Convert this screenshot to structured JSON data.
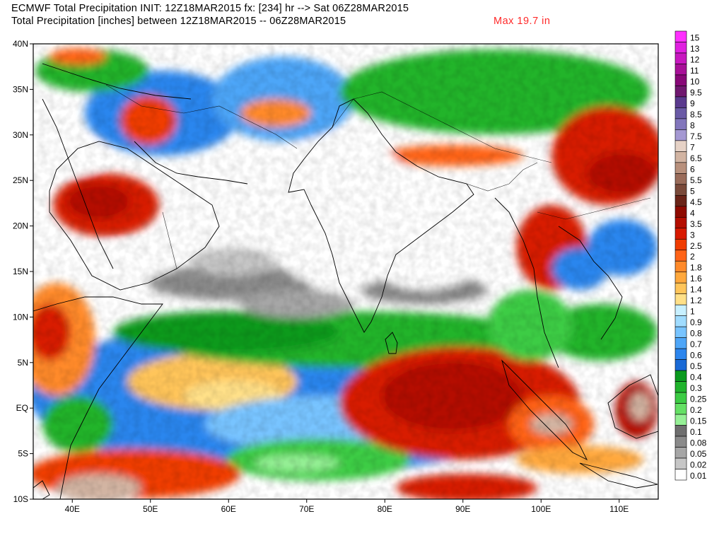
{
  "header": {
    "title_line1": "ECMWF Total Precipitation INIT: 12Z18MAR2015 fx: [234] hr --> Sat 06Z28MAR2015",
    "title_line2": "Total Precipitation [inches] between 12Z18MAR2015 -- 06Z28MAR2015",
    "max_label": "Max  19.7 in"
  },
  "map": {
    "lon_range": [
      35,
      115
    ],
    "lat_range": [
      -10,
      40
    ],
    "x_ticks": [
      "40E",
      "50E",
      "60E",
      "70E",
      "80E",
      "90E",
      "100E",
      "110E"
    ],
    "y_ticks": [
      "40N",
      "35N",
      "30N",
      "25N",
      "20N",
      "15N",
      "10N",
      "5N",
      "EQ",
      "5S",
      "10S"
    ]
  },
  "legend": {
    "levels": [
      {
        "label": "15",
        "color": "#ff30ff"
      },
      {
        "label": "13",
        "color": "#e020e0"
      },
      {
        "label": "12",
        "color": "#c818c0"
      },
      {
        "label": "11",
        "color": "#a81098"
      },
      {
        "label": "10",
        "color": "#880878"
      },
      {
        "label": "9.5",
        "color": "#701870"
      },
      {
        "label": "9",
        "color": "#5a3a8e"
      },
      {
        "label": "8.5",
        "color": "#6a5aa6"
      },
      {
        "label": "8",
        "color": "#8276bc"
      },
      {
        "label": "7.5",
        "color": "#a498d2"
      },
      {
        "label": "7",
        "color": "#e6d2c6"
      },
      {
        "label": "6.5",
        "color": "#d2b4a2"
      },
      {
        "label": "6",
        "color": "#b8907c"
      },
      {
        "label": "5.5",
        "color": "#9a6c5a"
      },
      {
        "label": "5",
        "color": "#7a4a3a"
      },
      {
        "label": "4.5",
        "color": "#6a2418"
      },
      {
        "label": "4",
        "color": "#8e0a00"
      },
      {
        "label": "3.5",
        "color": "#b40e00"
      },
      {
        "label": "3",
        "color": "#d81a00"
      },
      {
        "label": "2.5",
        "color": "#f03c00"
      },
      {
        "label": "2",
        "color": "#ff6418"
      },
      {
        "label": "1.8",
        "color": "#ff8a2a"
      },
      {
        "label": "1.6",
        "color": "#ffa83c"
      },
      {
        "label": "1.4",
        "color": "#ffc55a"
      },
      {
        "label": "1.2",
        "color": "#ffe088"
      },
      {
        "label": "1",
        "color": "#c8f0ff"
      },
      {
        "label": "0.9",
        "color": "#a0dcff"
      },
      {
        "label": "0.8",
        "color": "#78c4ff"
      },
      {
        "label": "0.7",
        "color": "#4ea6f8"
      },
      {
        "label": "0.6",
        "color": "#2c86ee"
      },
      {
        "label": "0.5",
        "color": "#1a6ad6"
      },
      {
        "label": "0.4",
        "color": "#0a9a1e"
      },
      {
        "label": "0.3",
        "color": "#20b42c"
      },
      {
        "label": "0.25",
        "color": "#3ccc44"
      },
      {
        "label": "0.2",
        "color": "#64e064"
      },
      {
        "label": "0.15",
        "color": "#96f096"
      },
      {
        "label": "0.1",
        "color": "#6e6e6e"
      },
      {
        "label": "0.08",
        "color": "#8a8a8a"
      },
      {
        "label": "0.05",
        "color": "#a6a6a6"
      },
      {
        "label": "0.02",
        "color": "#c6c6c6"
      },
      {
        "label": "0.01",
        "color": "#ffffff"
      }
    ]
  }
}
